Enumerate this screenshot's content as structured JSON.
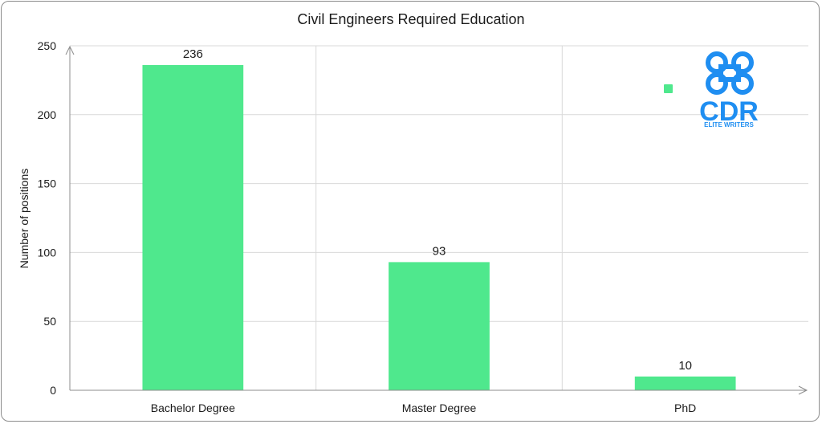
{
  "chart_data": {
    "type": "bar",
    "title": "Civil Engineers Required Education",
    "xlabel": "",
    "ylabel": "Number of positions",
    "categories": [
      "Bachelor Degree",
      "Master Degree",
      "PhD"
    ],
    "values": [
      236,
      93,
      10
    ],
    "ylim": [
      0,
      250
    ],
    "yticks": [
      0,
      50,
      100,
      150,
      200,
      250
    ],
    "bar_color": "#4fe88d",
    "grid": true,
    "legend": "top-right"
  },
  "logo": {
    "text": "CDR",
    "subtitle": "ELITE WRITERS",
    "color": "#1f8ef1"
  }
}
